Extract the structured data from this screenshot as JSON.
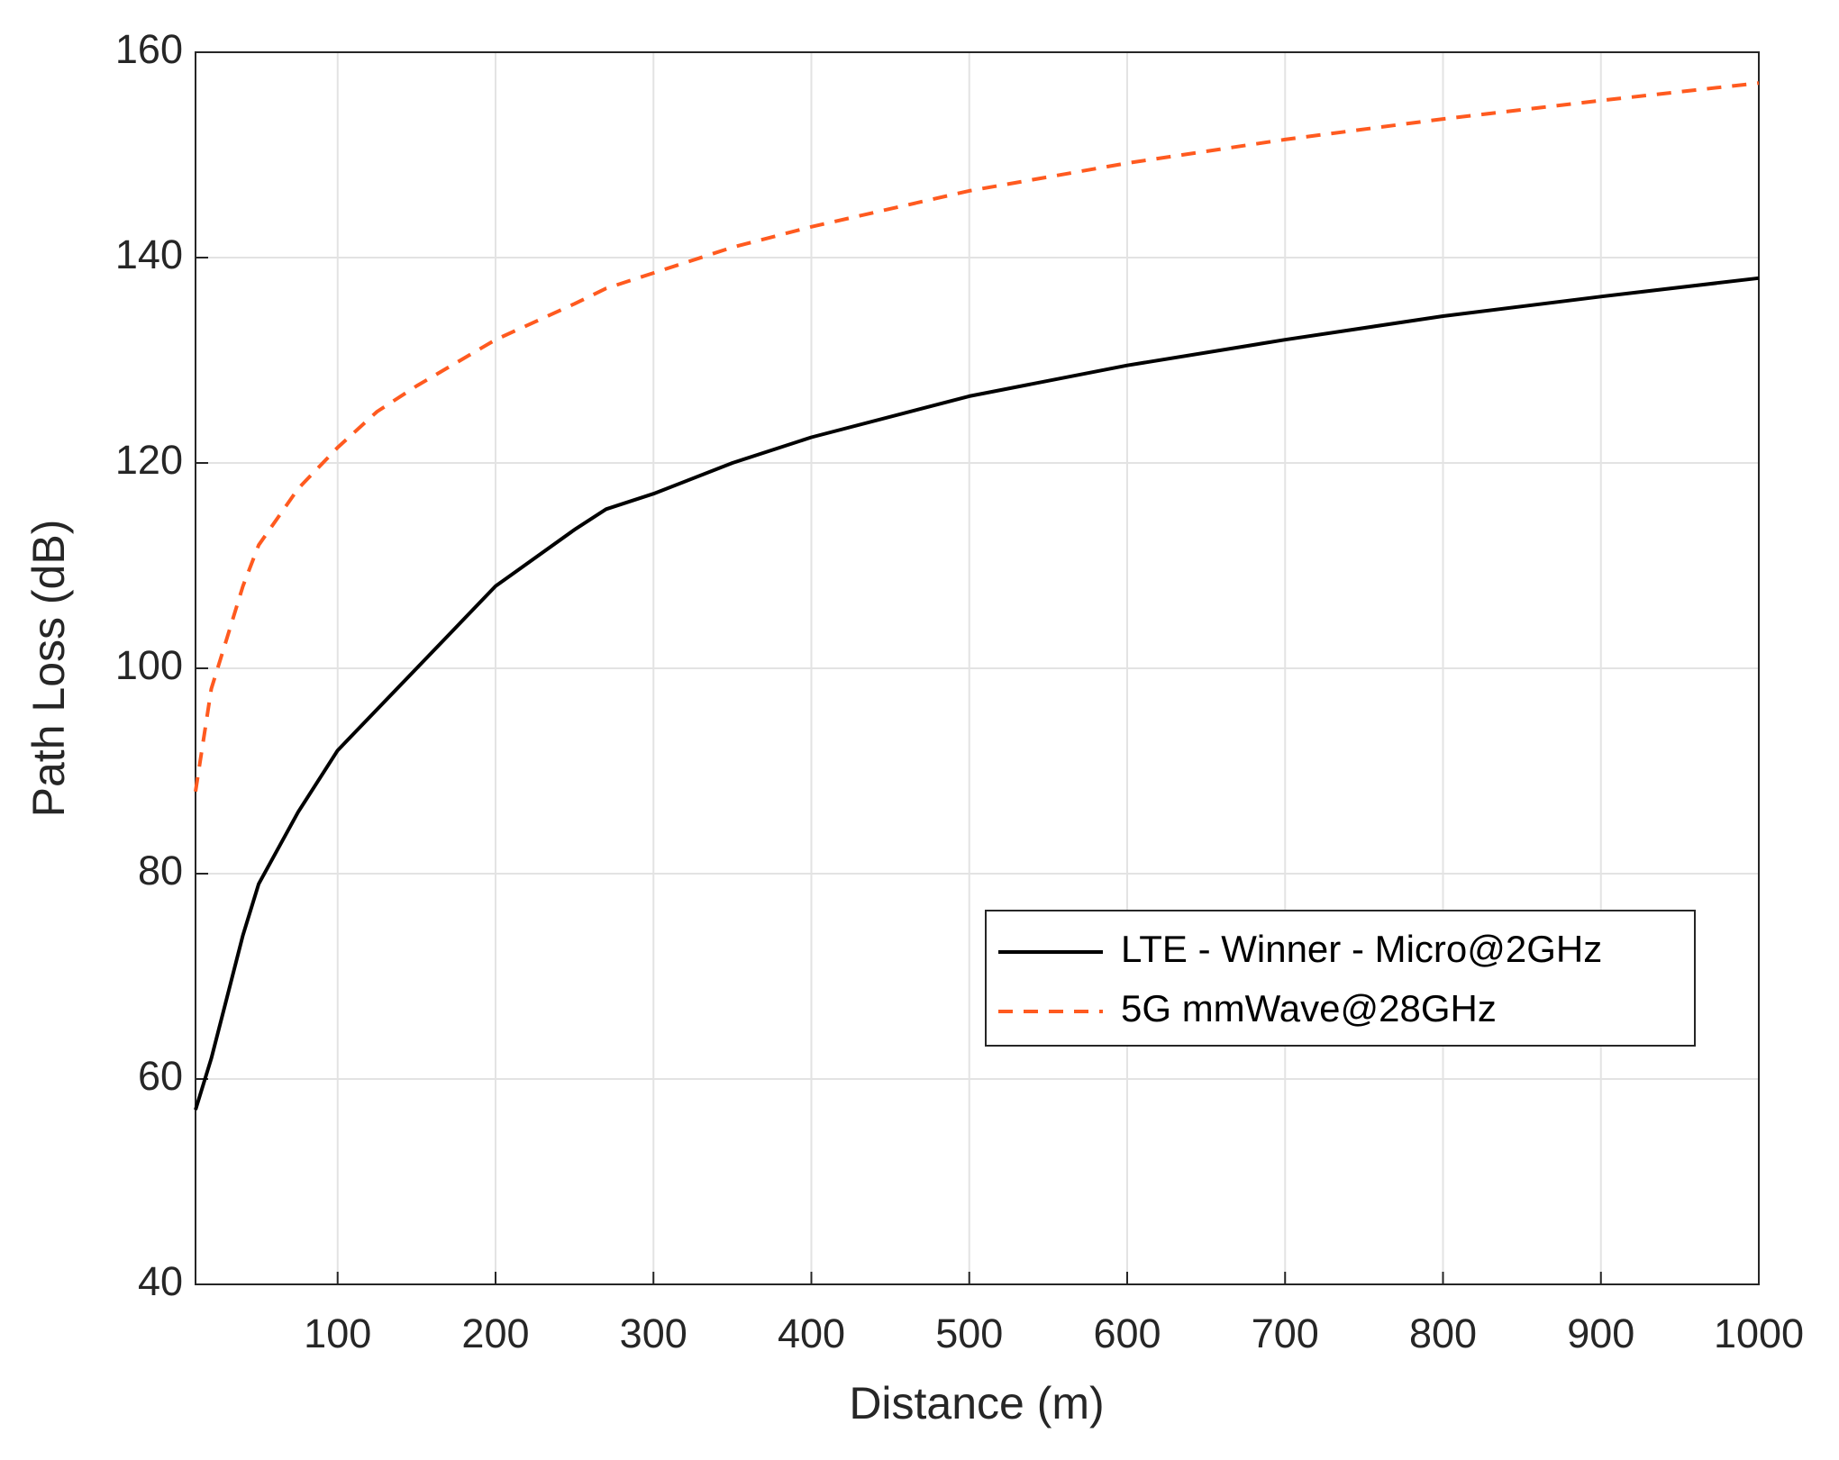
{
  "chart_data": {
    "type": "line",
    "xlabel": "Distance (m)",
    "ylabel": "Path Loss (dB)",
    "x": [
      10,
      20,
      30,
      40,
      50,
      75,
      100,
      125,
      150,
      200,
      250,
      270,
      300,
      350,
      400,
      500,
      600,
      700,
      800,
      900,
      1000
    ],
    "series": [
      {
        "name": "LTE - Winner - Micro@2GHz",
        "color": "#000000",
        "dash": "solid",
        "values": [
          57,
          62,
          68,
          74,
          79,
          86,
          92,
          96,
          100,
          108,
          113.5,
          115.5,
          117,
          120,
          122.5,
          126.5,
          129.5,
          132,
          134.3,
          136.2,
          138
        ]
      },
      {
        "name": "5G mmWave@28GHz",
        "color": "#ff5a1f",
        "dash": "dashed",
        "values": [
          88,
          98,
          103,
          108,
          112,
          117.5,
          121.5,
          125,
          127.5,
          132,
          135.5,
          137,
          138.5,
          141,
          143,
          146.5,
          149.2,
          151.5,
          153.5,
          155.3,
          157
        ]
      }
    ],
    "xlim": [
      10,
      1000
    ],
    "xticks": [
      100,
      200,
      300,
      400,
      500,
      600,
      700,
      800,
      900,
      1000
    ],
    "ylim": [
      40,
      160
    ],
    "yticks": [
      40,
      60,
      80,
      100,
      120,
      140,
      160
    ],
    "grid": true,
    "legend": "lower right"
  }
}
